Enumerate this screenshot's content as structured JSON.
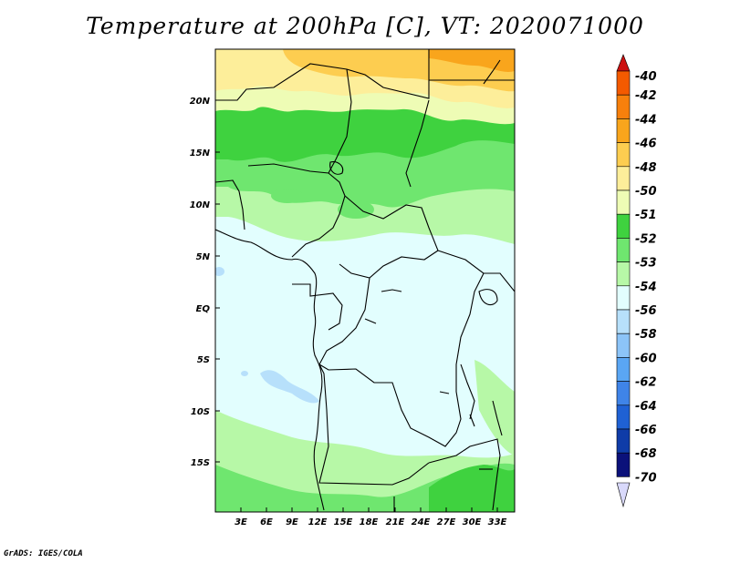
{
  "title": "Temperature at 200hPa [C], VT: 2020071000",
  "credit": "GrADS: IGES/COLA",
  "map": {
    "lat_labels": [
      "20N",
      "15N",
      "10N",
      "5N",
      "EQ",
      "5S",
      "10S",
      "15S"
    ],
    "lon_labels": [
      "3E",
      "6E",
      "9E",
      "12E",
      "15E",
      "18E",
      "21E",
      "24E",
      "27E",
      "30E",
      "33E"
    ]
  },
  "legend": {
    "labels": [
      "-40",
      "-42",
      "-44",
      "-46",
      "-48",
      "-50",
      "-51",
      "-52",
      "-53",
      "-54",
      "-56",
      "-58",
      "-60",
      "-62",
      "-64",
      "-66",
      "-68",
      "-70"
    ],
    "colors": [
      "#ee2a0a",
      "#f45a00",
      "#f7800c",
      "#f9a51c",
      "#fdcd50",
      "#fdee9a",
      "#eefcb5",
      "#3fd23f",
      "#6fe66f",
      "#b7f8a7",
      "#e2fefe",
      "#b7e0fb",
      "#8cc4f8",
      "#5aa6f4",
      "#3f84e8",
      "#1f61d4",
      "#0f3ca8",
      "#0b117a"
    ],
    "top_arrow_color": "#cc1111",
    "bottom_arrow_color": "#d9d9fb"
  }
}
